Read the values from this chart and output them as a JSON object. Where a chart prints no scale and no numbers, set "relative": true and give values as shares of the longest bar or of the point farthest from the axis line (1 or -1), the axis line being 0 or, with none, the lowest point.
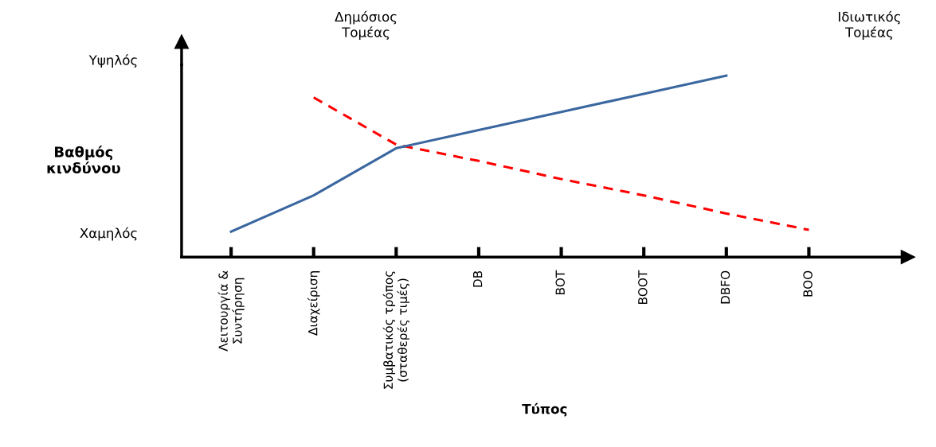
{
  "chart_data": {
    "type": "line",
    "relative": true,
    "xlabel": "Τύπος",
    "ylabel": "Βαθμός\nκινδύνου",
    "annotations": [
      "Δημόσιος\nΤομέας",
      "Ιδιωτικός\nΤομέας",
      "Υψηλός",
      "Χαμηλός"
    ],
    "categories": [
      "Λειτουργία &\nΣυντήρηση",
      "Διαχείριση",
      "Συμβατικός τρόπος\n(σταθερές τιμές)",
      "DB",
      "BOT",
      "BOOT",
      "DBFO",
      "BOO"
    ],
    "series": [
      {
        "color": "#ff0000",
        "line_style": "dashed",
        "values": [
          null,
          0.88,
          0.62,
          0.53,
          0.43,
          0.34,
          0.24,
          0.15
        ]
      },
      {
        "color": "#3b67a0",
        "line_style": "solid",
        "values": [
          0.14,
          0.34,
          0.6,
          0.7,
          0.8,
          0.9,
          1,
          null
        ]
      }
    ],
    "grid": false,
    "legend": false,
    "marker": "none"
  }
}
